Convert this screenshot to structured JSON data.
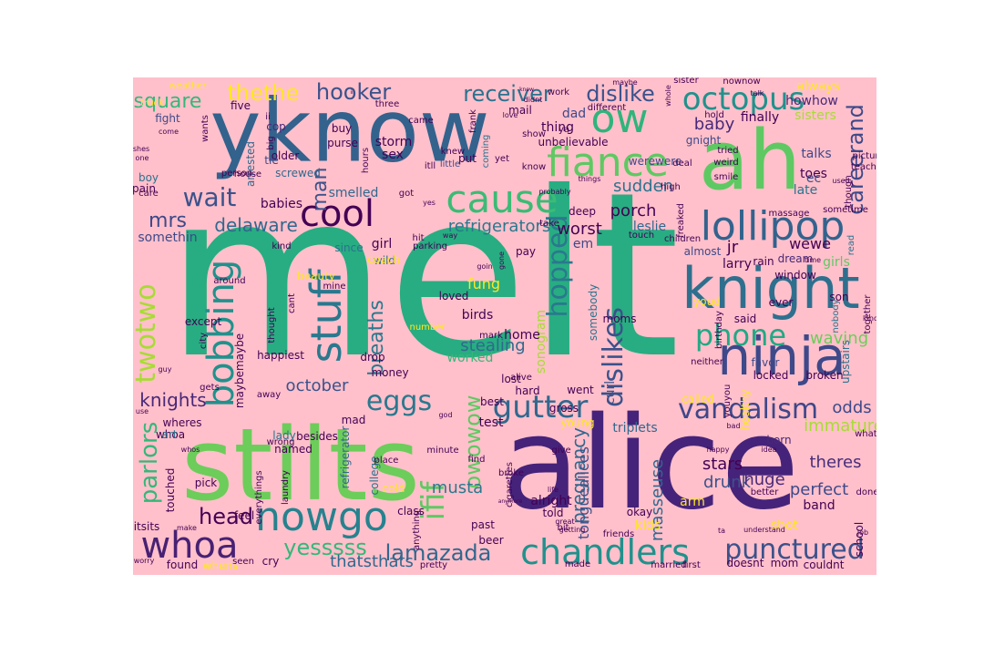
{
  "background_color": "#ffc0cb",
  "palette": [
    "#440154",
    "#3b528b",
    "#21918c",
    "#27ad81",
    "#5ec962",
    "#a8db34",
    "#fde725"
  ],
  "words": [
    {
      "text": "melt",
      "color": "#27ad81"
    },
    {
      "text": "alice",
      "color": "#46237a"
    },
    {
      "text": "stilts",
      "color": "#6ccd5a"
    },
    {
      "text": "yknow",
      "color": "#33628d"
    },
    {
      "text": "ah",
      "color": "#5ec962"
    },
    {
      "text": "knight",
      "color": "#2f6f8e"
    },
    {
      "text": "ninja",
      "color": "#3e4989"
    },
    {
      "text": "lollipop",
      "color": "#33638d"
    },
    {
      "text": "cause",
      "color": "#3bbb75"
    },
    {
      "text": "fiance",
      "color": "#5ec962"
    },
    {
      "text": "ow",
      "color": "#2fb47c"
    },
    {
      "text": "octopus",
      "color": "#21918c"
    },
    {
      "text": "cool",
      "color": "#440154"
    },
    {
      "text": "nowgo",
      "color": "#26828e"
    },
    {
      "text": "chandlers",
      "color": "#21918c"
    },
    {
      "text": "whoa",
      "color": "#482173"
    },
    {
      "text": "punctured",
      "color": "#3b528b"
    },
    {
      "text": "stuff",
      "color": "#2a788e"
    },
    {
      "text": "bobbing",
      "color": "#21918c"
    },
    {
      "text": "twotwo",
      "color": "#a8db34"
    },
    {
      "text": "eggs",
      "color": "#2a788e"
    },
    {
      "text": "gutter",
      "color": "#31688e"
    },
    {
      "text": "vandalism",
      "color": "#3f4788"
    },
    {
      "text": "dislikes",
      "color": "#3b528b"
    },
    {
      "text": "phone",
      "color": "#22a884"
    },
    {
      "text": "hopped",
      "color": "#2a788e"
    },
    {
      "text": "receiver",
      "color": "#2c728e"
    },
    {
      "text": "hooker",
      "color": "#3b528b"
    },
    {
      "text": "dislike",
      "color": "#3b528b"
    },
    {
      "text": "thethe",
      "color": "#fde725"
    },
    {
      "text": "square",
      "color": "#35b779"
    },
    {
      "text": "wait",
      "color": "#3b528b"
    },
    {
      "text": "mrs",
      "color": "#3e4989"
    },
    {
      "text": "delaware",
      "color": "#31688e"
    },
    {
      "text": "careerand",
      "color": "#3e4989"
    },
    {
      "text": "lamazada",
      "color": "#31688e"
    },
    {
      "text": "yesssss",
      "color": "#35b779"
    },
    {
      "text": "ifif",
      "color": "#5ec962"
    },
    {
      "text": "owowow",
      "color": "#5ec962"
    },
    {
      "text": "head",
      "color": "#440154"
    },
    {
      "text": "parlors",
      "color": "#35b779"
    },
    {
      "text": "knights",
      "color": "#482878"
    },
    {
      "text": "man",
      "color": "#3b528b"
    },
    {
      "text": "baby",
      "color": "#482878"
    },
    {
      "text": "refrigerators",
      "color": "#2a788e"
    },
    {
      "text": "stealing",
      "color": "#31688e"
    },
    {
      "text": "breaths",
      "color": "#2a788e"
    },
    {
      "text": "worst",
      "color": "#440154"
    },
    {
      "text": "porch",
      "color": "#440154"
    },
    {
      "text": "sudden",
      "color": "#2c728e"
    },
    {
      "text": "perfect",
      "color": "#3e4989"
    },
    {
      "text": "theres",
      "color": "#472c7a"
    },
    {
      "text": "musta",
      "color": "#2a788e"
    },
    {
      "text": "pregnancy",
      "color": "#31688e"
    },
    {
      "text": "masseuse",
      "color": "#31688e"
    },
    {
      "text": "drunk",
      "color": "#3b528b"
    },
    {
      "text": "stars",
      "color": "#440154"
    },
    {
      "text": "huge",
      "color": "#482878"
    },
    {
      "text": "thatsthats",
      "color": "#31688e"
    },
    {
      "text": "waving",
      "color": "#6ccd5a"
    },
    {
      "text": "odds",
      "color": "#3e4989"
    },
    {
      "text": "immature",
      "color": "#a8db34"
    },
    {
      "text": "october",
      "color": "#3b528b"
    },
    {
      "text": "jr",
      "color": "#440154"
    },
    {
      "text": "larry",
      "color": "#440154"
    },
    {
      "text": "wewe",
      "color": "#440154"
    },
    {
      "text": "leslie",
      "color": "#31688e"
    },
    {
      "text": "curl",
      "color": "#3b528b"
    },
    {
      "text": "test",
      "color": "#440154"
    },
    {
      "text": "triplets",
      "color": "#31688e"
    },
    {
      "text": "em",
      "color": "#3e4989"
    },
    {
      "text": "fung",
      "color": "#fde725"
    },
    {
      "text": "sonogram",
      "color": "#a8db34"
    },
    {
      "text": "tonguealices",
      "color": "#3b528b"
    },
    {
      "text": "smelled",
      "color": "#31688e"
    },
    {
      "text": "babies",
      "color": "#440154"
    },
    {
      "text": "somethin",
      "color": "#3e4989"
    },
    {
      "text": "worked",
      "color": "#35b779"
    },
    {
      "text": "home",
      "color": "#440154"
    },
    {
      "text": "toes",
      "color": "#440154"
    },
    {
      "text": "talks",
      "color": "#3e4989"
    },
    {
      "text": "late",
      "color": "#2c728e"
    },
    {
      "text": "ec",
      "color": "#3b528b"
    },
    {
      "text": "finally",
      "color": "#440154"
    },
    {
      "text": "sisters",
      "color": "#a8db34"
    },
    {
      "text": "always",
      "color": "#fde725"
    },
    {
      "text": "howhow",
      "color": "#482878"
    },
    {
      "text": "storm",
      "color": "#440154"
    },
    {
      "text": "sex",
      "color": "#440154"
    },
    {
      "text": "dad",
      "color": "#3e4989"
    },
    {
      "text": "mail",
      "color": "#440154"
    },
    {
      "text": "thing",
      "color": "#440154"
    },
    {
      "text": "werewere",
      "color": "#3e4989"
    },
    {
      "text": "unbelievable",
      "color": "#440154"
    },
    {
      "text": "gnight",
      "color": "#3e4989"
    },
    {
      "text": "cop",
      "color": "#482878"
    },
    {
      "text": "buy",
      "color": "#440154"
    },
    {
      "text": "purse",
      "color": "#440154"
    },
    {
      "text": "older",
      "color": "#440154"
    },
    {
      "text": "tie",
      "color": "#3e4989"
    },
    {
      "text": "screwed",
      "color": "#31688e"
    },
    {
      "text": "arrested",
      "color": "#31688e"
    },
    {
      "text": "boy",
      "color": "#2c728e"
    },
    {
      "text": "pain",
      "color": "#440154"
    },
    {
      "text": "fight",
      "color": "#3e4989"
    },
    {
      "text": "five",
      "color": "#440154"
    },
    {
      "text": "put",
      "color": "#440154"
    },
    {
      "text": "coming",
      "color": "#2c728e"
    },
    {
      "text": "little",
      "color": "#3e4989"
    },
    {
      "text": "itll",
      "color": "#440154"
    },
    {
      "text": "girl",
      "color": "#440154"
    },
    {
      "text": "since",
      "color": "#2c728e"
    },
    {
      "text": "wild",
      "color": "#31688e"
    },
    {
      "text": "birds",
      "color": "#440154"
    },
    {
      "text": "somebody",
      "color": "#2c728e"
    },
    {
      "text": "moms",
      "color": "#440154"
    },
    {
      "text": "youd",
      "color": "#fde725"
    },
    {
      "text": "almost",
      "color": "#3e4989"
    },
    {
      "text": "rain",
      "color": "#440154"
    },
    {
      "text": "dream",
      "color": "#482878"
    },
    {
      "text": "girls",
      "color": "#5ec962"
    },
    {
      "text": "window",
      "color": "#440154"
    },
    {
      "text": "son",
      "color": "#440154"
    },
    {
      "text": "ever",
      "color": "#440154"
    },
    {
      "text": "birthday",
      "color": "#440154"
    },
    {
      "text": "said",
      "color": "#440154"
    },
    {
      "text": "favor",
      "color": "#3e4989"
    },
    {
      "text": "locked",
      "color": "#440154"
    },
    {
      "text": "broken",
      "color": "#440154"
    },
    {
      "text": "upstairs",
      "color": "#2c728e"
    },
    {
      "text": "healthy",
      "color": "#fde725"
    },
    {
      "text": "born",
      "color": "#482878"
    },
    {
      "text": "better",
      "color": "#440154"
    },
    {
      "text": "band",
      "color": "#440154"
    },
    {
      "text": "mom",
      "color": "#440154"
    },
    {
      "text": "doesnt",
      "color": "#440154"
    },
    {
      "text": "couldnt",
      "color": "#440154"
    },
    {
      "text": "school",
      "color": "#440154"
    },
    {
      "text": "shot",
      "color": "#fde725"
    },
    {
      "text": "kids",
      "color": "#fde725"
    },
    {
      "text": "okay",
      "color": "#440154"
    },
    {
      "text": "alright",
      "color": "#440154"
    },
    {
      "text": "told",
      "color": "#440154"
    },
    {
      "text": "arm",
      "color": "#fde725"
    },
    {
      "text": "past",
      "color": "#440154"
    },
    {
      "text": "beer",
      "color": "#440154"
    },
    {
      "text": "class",
      "color": "#440154"
    },
    {
      "text": "college",
      "color": "#2c728e"
    },
    {
      "text": "refrigerator",
      "color": "#31688e"
    },
    {
      "text": "named",
      "color": "#440154"
    },
    {
      "text": "mad",
      "color": "#440154"
    },
    {
      "text": "lady",
      "color": "#2c728e"
    },
    {
      "text": "besides",
      "color": "#440154"
    },
    {
      "text": "money",
      "color": "#440154"
    },
    {
      "text": "drop",
      "color": "#440154"
    },
    {
      "text": "happiest",
      "color": "#440154"
    },
    {
      "text": "loved",
      "color": "#440154"
    },
    {
      "text": "mine",
      "color": "#440154"
    },
    {
      "text": "except",
      "color": "#440154"
    },
    {
      "text": "whoa_small",
      "color": "#440154"
    },
    {
      "text": "wheres",
      "color": "#440154"
    },
    {
      "text": "art",
      "color": "#2c728e"
    },
    {
      "text": "pick",
      "color": "#440154"
    },
    {
      "text": "touched",
      "color": "#440154"
    },
    {
      "text": "everythings",
      "color": "#440154"
    },
    {
      "text": "feel",
      "color": "#440154"
    },
    {
      "text": "itsits",
      "color": "#440154"
    },
    {
      "text": "found",
      "color": "#440154"
    },
    {
      "text": "whens",
      "color": "#fde725"
    },
    {
      "text": "cry",
      "color": "#440154"
    },
    {
      "text": "maybemaybe",
      "color": "#440154"
    },
    {
      "text": "cold",
      "color": "#fde725"
    },
    {
      "text": "city",
      "color": "#440154"
    },
    {
      "text": "hard",
      "color": "#440154"
    },
    {
      "text": "lost",
      "color": "#440154"
    },
    {
      "text": "best",
      "color": "#440154"
    },
    {
      "text": "young",
      "color": "#fde725"
    },
    {
      "text": "gross",
      "color": "#440154"
    },
    {
      "text": "went",
      "color": "#440154"
    },
    {
      "text": "hit",
      "color": "#440154"
    },
    {
      "text": "parking",
      "color": "#440154"
    },
    {
      "text": "deep",
      "color": "#440154"
    },
    {
      "text": "pay",
      "color": "#440154"
    },
    {
      "text": "kind",
      "color": "#440154"
    },
    {
      "text": "got",
      "color": "#440154"
    },
    {
      "text": "mark",
      "color": "#440154"
    },
    {
      "text": "number",
      "color": "#fde725"
    },
    {
      "text": "work",
      "color": "#440154"
    },
    {
      "text": "different",
      "color": "#440154"
    },
    {
      "text": "came",
      "color": "#440154"
    },
    {
      "text": "three",
      "color": "#440154"
    },
    {
      "text": "frank",
      "color": "#440154"
    },
    {
      "text": "nownow",
      "color": "#440154"
    },
    {
      "text": "sister",
      "color": "#440154"
    },
    {
      "text": "tried",
      "color": "#440154"
    },
    {
      "text": "smile",
      "color": "#440154"
    },
    {
      "text": "massage",
      "color": "#440154"
    },
    {
      "text": "sometime",
      "color": "#440154"
    },
    {
      "text": "read",
      "color": "#2c728e"
    },
    {
      "text": "nobody",
      "color": "#2c728e"
    },
    {
      "text": "called",
      "color": "#fde725"
    },
    {
      "text": "weather",
      "color": "#fde725"
    },
    {
      "text": "truck",
      "color": "#fde725"
    },
    {
      "text": "hold",
      "color": "#440154"
    },
    {
      "text": "youyou",
      "color": "#440154"
    },
    {
      "text": "beauty",
      "color": "#fde725"
    },
    {
      "text": "coach",
      "color": "#fde725"
    },
    {
      "text": "together",
      "color": "#440154"
    },
    {
      "text": "whats",
      "color": "#440154"
    },
    {
      "text": "done",
      "color": "#440154"
    },
    {
      "text": "picture",
      "color": "#440154"
    },
    {
      "text": "teacher",
      "color": "#440154"
    },
    {
      "text": "neither",
      "color": "#440154"
    },
    {
      "text": "ya",
      "color": "#440154"
    },
    {
      "text": "show",
      "color": "#440154"
    },
    {
      "text": "knew",
      "color": "#440154"
    },
    {
      "text": "yet",
      "color": "#440154"
    },
    {
      "text": "wants",
      "color": "#440154"
    },
    {
      "text": "big",
      "color": "#440154"
    },
    {
      "text": "hours",
      "color": "#440154"
    },
    {
      "text": "care",
      "color": "#440154"
    },
    {
      "text": "person",
      "color": "#440154"
    },
    {
      "text": "house",
      "color": "#440154"
    },
    {
      "text": "ii",
      "color": "#440154"
    },
    {
      "text": "deal",
      "color": "#440154"
    },
    {
      "text": "weird",
      "color": "#440154"
    },
    {
      "text": "know",
      "color": "#440154"
    },
    {
      "text": "cant",
      "color": "#440154"
    },
    {
      "text": "thought",
      "color": "#440154"
    },
    {
      "text": "around",
      "color": "#440154"
    },
    {
      "text": "gets",
      "color": "#440154"
    },
    {
      "text": "away",
      "color": "#440154"
    },
    {
      "text": "wrong",
      "color": "#440154"
    },
    {
      "text": "laundry",
      "color": "#440154"
    },
    {
      "text": "seen",
      "color": "#440154"
    },
    {
      "text": "cigarettes",
      "color": "#440154"
    },
    {
      "text": "broke",
      "color": "#440154"
    },
    {
      "text": "bit",
      "color": "#440154"
    },
    {
      "text": "friends",
      "color": "#440154"
    },
    {
      "text": "married",
      "color": "#440154"
    },
    {
      "text": "made",
      "color": "#440154"
    },
    {
      "text": "first",
      "color": "#440154"
    },
    {
      "text": "pretty",
      "color": "#440154"
    },
    {
      "text": "minute",
      "color": "#440154"
    },
    {
      "text": "place",
      "color": "#440154"
    },
    {
      "text": "give",
      "color": "#440154"
    },
    {
      "text": "find",
      "color": "#440154"
    },
    {
      "text": "anything",
      "color": "#440154"
    },
    {
      "text": "alive",
      "color": "#440154"
    },
    {
      "text": "freaked",
      "color": "#440154"
    },
    {
      "text": "take",
      "color": "#440154"
    },
    {
      "text": "touch",
      "color": "#440154"
    },
    {
      "text": "children",
      "color": "#440154"
    },
    {
      "text": "high",
      "color": "#440154"
    },
    {
      "text": "though",
      "color": "#440154"
    },
    {
      "text": "used",
      "color": "#440154"
    },
    {
      "text": "time",
      "color": "#440154"
    },
    {
      "text": "kinda",
      "color": "#440154"
    },
    {
      "text": "idea",
      "color": "#440154"
    },
    {
      "text": "happy",
      "color": "#440154"
    },
    {
      "text": "life",
      "color": "#440154"
    },
    {
      "text": "ta",
      "color": "#440154"
    },
    {
      "text": "understand",
      "color": "#440154"
    },
    {
      "text": "job",
      "color": "#440154"
    },
    {
      "text": "worry",
      "color": "#440154"
    },
    {
      "text": "make",
      "color": "#440154"
    },
    {
      "text": "use",
      "color": "#440154"
    },
    {
      "text": "whos",
      "color": "#440154"
    },
    {
      "text": "shes",
      "color": "#440154"
    },
    {
      "text": "one",
      "color": "#440154"
    },
    {
      "text": "come",
      "color": "#440154"
    },
    {
      "text": "talk",
      "color": "#440154"
    },
    {
      "text": "whole",
      "color": "#440154"
    },
    {
      "text": "maybe",
      "color": "#440154"
    },
    {
      "text": "didnt",
      "color": "#440154"
    },
    {
      "text": "love",
      "color": "#440154"
    },
    {
      "text": "things",
      "color": "#440154"
    },
    {
      "text": "probably",
      "color": "#440154"
    },
    {
      "text": "way",
      "color": "#440154"
    },
    {
      "text": "yes",
      "color": "#440154"
    },
    {
      "text": "bad",
      "color": "#440154"
    },
    {
      "text": "great",
      "color": "#440154"
    },
    {
      "text": "getting",
      "color": "#440154"
    },
    {
      "text": "guy",
      "color": "#440154"
    },
    {
      "text": "gone",
      "color": "#440154"
    },
    {
      "text": "god",
      "color": "#440154"
    },
    {
      "text": "goin",
      "color": "#440154"
    },
    {
      "text": "ii2",
      "color": "#440154"
    },
    {
      "text": "know2",
      "color": "#440154"
    },
    {
      "text": "anymore",
      "color": "#440154"
    }
  ]
}
